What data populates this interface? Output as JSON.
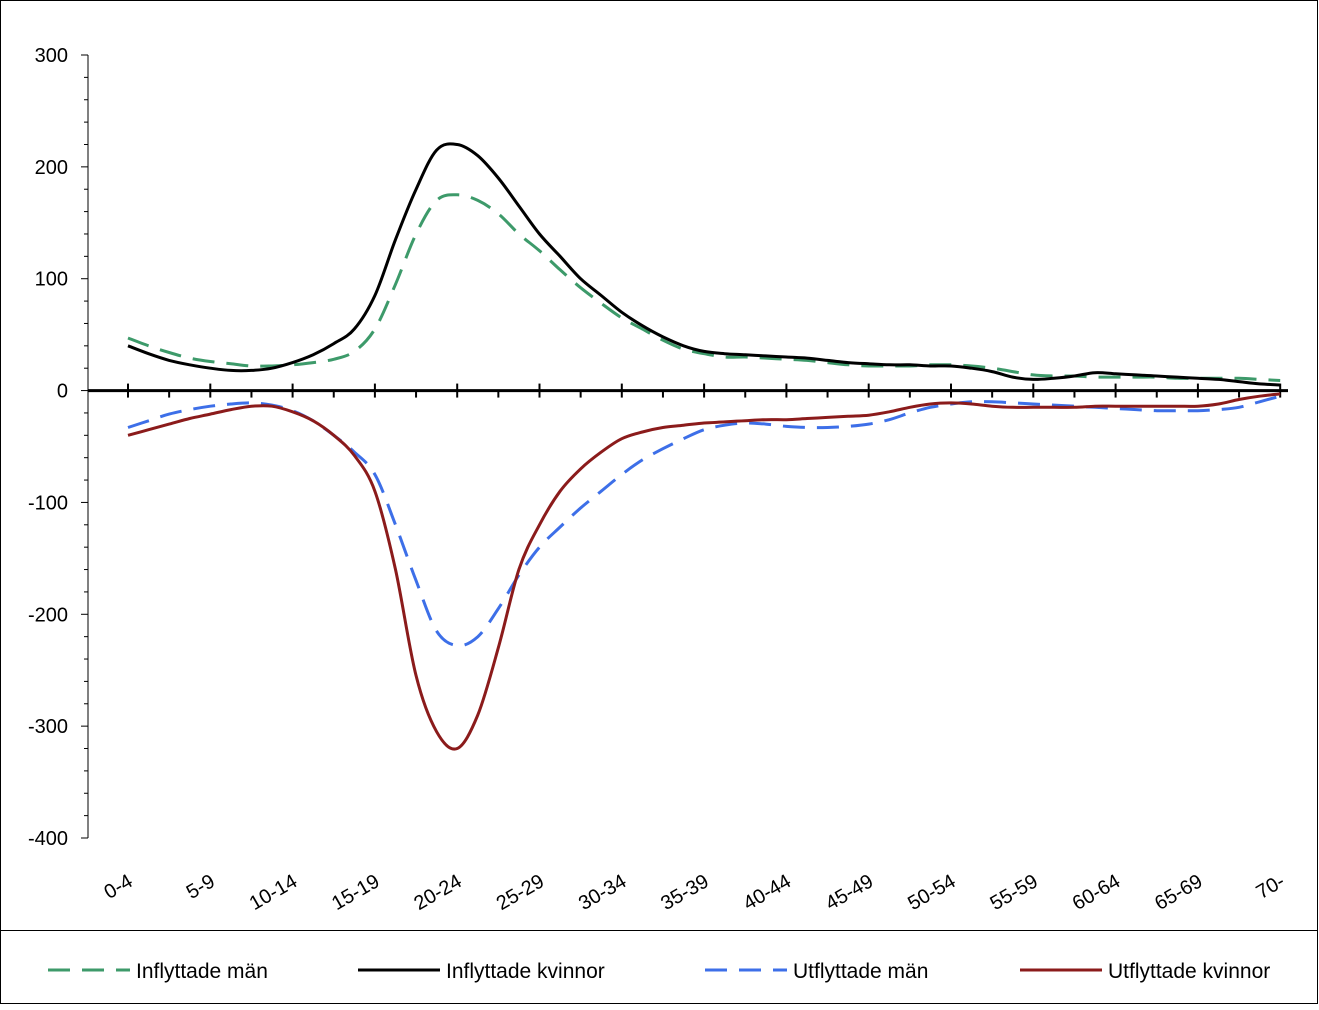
{
  "chart_data": {
    "type": "line",
    "categories": [
      "0-4",
      "5-9",
      "10-14",
      "15-19",
      "20-24",
      "25-29",
      "30-34",
      "35-39",
      "40-44",
      "45-49",
      "50-54",
      "55-59",
      "60-64",
      "65-69",
      "70-"
    ],
    "ylim": [
      -400,
      300
    ],
    "yticks": [
      "300",
      "200",
      "100",
      "0",
      "-100",
      "-200",
      "-300",
      "-400"
    ],
    "grid": false,
    "legend_position": "bottom",
    "title": "",
    "xlabel": "",
    "ylabel": "",
    "series": [
      {
        "name": "Inflyttade män",
        "color": "#3d9a6a",
        "dash": "dashed",
        "x": [
          0,
          0.25,
          0.5,
          0.75,
          1,
          1.25,
          1.5,
          1.75,
          2,
          2.25,
          2.5,
          2.75,
          3,
          3.25,
          3.5,
          3.75,
          4,
          4.25,
          4.5,
          4.75,
          5,
          5.25,
          5.5,
          5.75,
          6,
          6.25,
          6.5,
          6.75,
          7,
          7.25,
          7.5,
          7.75,
          8,
          8.25,
          8.5,
          8.75,
          9,
          9.25,
          9.5,
          9.75,
          10,
          10.25,
          10.5,
          10.75,
          11,
          11.25,
          11.5,
          11.75,
          12,
          12.25,
          12.5,
          12.75,
          13,
          13.25,
          13.5,
          13.75,
          14
        ],
        "values": [
          47,
          40,
          34,
          29,
          26,
          24,
          22,
          22,
          23,
          25,
          28,
          35,
          55,
          95,
          140,
          170,
          175,
          170,
          158,
          140,
          125,
          108,
          92,
          78,
          65,
          55,
          45,
          37,
          33,
          30,
          30,
          29,
          28,
          27,
          25,
          23,
          22,
          22,
          22,
          23,
          23,
          22,
          20,
          17,
          14,
          13,
          13,
          12,
          12,
          12,
          12,
          11,
          11,
          11,
          11,
          10,
          9
        ]
      },
      {
        "name": "Inflyttade kvinnor",
        "color": "#000000",
        "dash": "solid",
        "x": [
          0,
          0.25,
          0.5,
          0.75,
          1,
          1.25,
          1.5,
          1.75,
          2,
          2.25,
          2.5,
          2.75,
          3,
          3.25,
          3.5,
          3.75,
          4,
          4.25,
          4.5,
          4.75,
          5,
          5.25,
          5.5,
          5.75,
          6,
          6.25,
          6.5,
          6.75,
          7,
          7.25,
          7.5,
          7.75,
          8,
          8.25,
          8.5,
          8.75,
          9,
          9.25,
          9.5,
          9.75,
          10,
          10.25,
          10.5,
          10.75,
          11,
          11.25,
          11.5,
          11.75,
          12,
          12.25,
          12.5,
          12.75,
          13,
          13.25,
          13.5,
          13.75,
          14
        ],
        "values": [
          40,
          33,
          27,
          23,
          20,
          18,
          18,
          20,
          25,
          32,
          42,
          55,
          85,
          135,
          180,
          215,
          220,
          210,
          190,
          165,
          140,
          120,
          100,
          85,
          70,
          58,
          48,
          40,
          35,
          33,
          32,
          31,
          30,
          29,
          27,
          25,
          24,
          23,
          23,
          22,
          22,
          20,
          17,
          12,
          10,
          11,
          13,
          16,
          15,
          14,
          13,
          12,
          11,
          10,
          8,
          6,
          5
        ]
      },
      {
        "name": "Utflyttade män",
        "color": "#3d6fe8",
        "dash": "dashed",
        "x": [
          0,
          0.25,
          0.5,
          0.75,
          1,
          1.25,
          1.5,
          1.75,
          2,
          2.25,
          2.5,
          2.75,
          3,
          3.25,
          3.5,
          3.75,
          4,
          4.25,
          4.5,
          4.75,
          5,
          5.25,
          5.5,
          5.75,
          6,
          6.25,
          6.5,
          6.75,
          7,
          7.25,
          7.5,
          7.75,
          8,
          8.25,
          8.5,
          8.75,
          9,
          9.25,
          9.5,
          9.75,
          10,
          10.25,
          10.5,
          10.75,
          11,
          11.25,
          11.5,
          11.75,
          12,
          12.25,
          12.5,
          12.75,
          13,
          13.25,
          13.5,
          13.75,
          14
        ],
        "values": [
          -33,
          -27,
          -21,
          -17,
          -14,
          -12,
          -11,
          -13,
          -18,
          -27,
          -40,
          -55,
          -75,
          -120,
          -170,
          -215,
          -228,
          -220,
          -195,
          -165,
          -140,
          -122,
          -105,
          -90,
          -75,
          -62,
          -52,
          -43,
          -35,
          -31,
          -29,
          -30,
          -32,
          -33,
          -33,
          -32,
          -30,
          -26,
          -20,
          -15,
          -12,
          -10,
          -10,
          -11,
          -12,
          -13,
          -14,
          -15,
          -16,
          -17,
          -18,
          -18,
          -18,
          -17,
          -15,
          -10,
          -5
        ]
      },
      {
        "name": "Utflyttade kvinnor",
        "color": "#8b1b1b",
        "dash": "solid",
        "x": [
          0,
          0.25,
          0.5,
          0.75,
          1,
          1.25,
          1.5,
          1.75,
          2,
          2.25,
          2.5,
          2.75,
          3,
          3.25,
          3.5,
          3.75,
          4,
          4.25,
          4.5,
          4.75,
          5,
          5.25,
          5.5,
          5.75,
          6,
          6.25,
          6.5,
          6.75,
          7,
          7.25,
          7.5,
          7.75,
          8,
          8.25,
          8.5,
          8.75,
          9,
          9.25,
          9.5,
          9.75,
          10,
          10.25,
          10.5,
          10.75,
          11,
          11.25,
          11.5,
          11.75,
          12,
          12.25,
          12.5,
          12.75,
          13,
          13.25,
          13.5,
          13.75,
          14
        ],
        "values": [
          -40,
          -35,
          -30,
          -25,
          -21,
          -17,
          -14,
          -14,
          -19,
          -27,
          -40,
          -58,
          -90,
          -160,
          -255,
          -305,
          -320,
          -290,
          -230,
          -160,
          -120,
          -90,
          -70,
          -55,
          -43,
          -37,
          -33,
          -31,
          -29,
          -28,
          -27,
          -26,
          -26,
          -25,
          -24,
          -23,
          -22,
          -19,
          -15,
          -12,
          -11,
          -12,
          -14,
          -15,
          -15,
          -15,
          -15,
          -14,
          -14,
          -14,
          -14,
          -14,
          -14,
          -12,
          -8,
          -5,
          -3
        ]
      }
    ]
  }
}
